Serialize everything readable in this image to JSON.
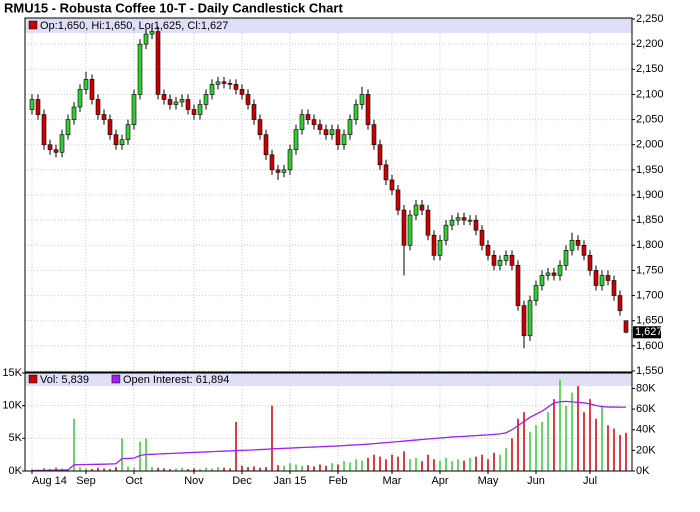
{
  "chart_data": [
    {
      "type": "candlestick",
      "title": "RMU15 - Robusta Coffee 10-T - Daily Candlestick Chart",
      "categories": [
        "Aug 14",
        null,
        null,
        null,
        null,
        null,
        null,
        null,
        null,
        "Sep",
        null,
        null,
        null,
        null,
        null,
        null,
        null,
        "Oct",
        null,
        null,
        null,
        null,
        null,
        null,
        null,
        null,
        null,
        "Nov",
        null,
        null,
        null,
        null,
        null,
        null,
        null,
        "Dec",
        null,
        null,
        null,
        null,
        null,
        null,
        null,
        "Jan 15",
        null,
        null,
        null,
        null,
        null,
        null,
        null,
        "Feb",
        null,
        null,
        null,
        null,
        null,
        null,
        null,
        null,
        "Mar",
        null,
        null,
        null,
        null,
        null,
        null,
        null,
        "Apr",
        null,
        null,
        null,
        null,
        null,
        null,
        null,
        "May",
        null,
        null,
        null,
        null,
        null,
        null,
        null,
        "Jun",
        null,
        null,
        null,
        null,
        null,
        null,
        null,
        null,
        "Jul",
        null,
        null,
        null,
        null,
        null,
        null
      ],
      "up_color": "#33cc33",
      "down_color": "#cc0000",
      "series": [
        {
          "name": "Op:1,650, Hi:1,650, Lo:1,625, Cl:1,627",
          "color": "#cc0000",
          "open": [
            2070,
            2090,
            2060,
            2000,
            1990,
            1985,
            2020,
            2050,
            2075,
            2110,
            2130,
            2090,
            2060,
            2050,
            2020,
            2000,
            2010,
            2040,
            2100,
            2200,
            2220,
            2225,
            2100,
            2090,
            2080,
            2085,
            2090,
            2070,
            2060,
            2080,
            2100,
            2120,
            2125,
            2122,
            2120,
            2110,
            2100,
            2080,
            2050,
            2020,
            1980,
            1950,
            1945,
            1950,
            1990,
            2030,
            2060,
            2050,
            2040,
            2030,
            2020,
            2030,
            2000,
            2020,
            2050,
            2080,
            2100,
            2040,
            2000,
            1960,
            1930,
            1910,
            1870,
            1800,
            1860,
            1880,
            1870,
            1820,
            1780,
            1810,
            1840,
            1850,
            1855,
            1850,
            1850,
            1830,
            1800,
            1780,
            1760,
            1770,
            1780,
            1760,
            1680,
            1620,
            1690,
            1720,
            1740,
            1745,
            1740,
            1760,
            1790,
            1810,
            1800,
            1780,
            1750,
            1720,
            1740,
            1730,
            1700,
            1650
          ],
          "high": [
            2100,
            2100,
            2070,
            2010,
            2000,
            2030,
            2060,
            2085,
            2120,
            2145,
            2140,
            2100,
            2070,
            2060,
            2030,
            2020,
            2050,
            2110,
            2210,
            2230,
            2240,
            2235,
            2110,
            2100,
            2095,
            2100,
            2100,
            2080,
            2090,
            2110,
            2130,
            2135,
            2135,
            2130,
            2130,
            2120,
            2110,
            2090,
            2060,
            2030,
            1990,
            1960,
            1960,
            2000,
            2040,
            2070,
            2070,
            2060,
            2050,
            2040,
            2040,
            2040,
            2030,
            2060,
            2090,
            2115,
            2110,
            2050,
            2010,
            1970,
            1940,
            1920,
            1880,
            1870,
            1890,
            1890,
            1880,
            1830,
            1820,
            1850,
            1860,
            1865,
            1865,
            1860,
            1860,
            1840,
            1810,
            1790,
            1780,
            1790,
            1790,
            1770,
            1690,
            1700,
            1730,
            1750,
            1755,
            1755,
            1770,
            1800,
            1825,
            1820,
            1810,
            1790,
            1760,
            1750,
            1750,
            1740,
            1710,
            1650
          ],
          "low": [
            2060,
            2050,
            1990,
            1980,
            1975,
            1975,
            2010,
            2040,
            2065,
            2100,
            2080,
            2050,
            2040,
            2010,
            1990,
            1990,
            2000,
            2030,
            2090,
            2190,
            2210,
            2090,
            2080,
            2070,
            2070,
            2075,
            2060,
            2050,
            2050,
            2070,
            2090,
            2110,
            2112,
            2110,
            2100,
            2090,
            2070,
            2040,
            2010,
            1970,
            1940,
            1930,
            1935,
            1940,
            1980,
            2020,
            2040,
            2030,
            2020,
            2010,
            2010,
            1990,
            1990,
            2010,
            2040,
            2070,
            2030,
            1990,
            1950,
            1920,
            1900,
            1860,
            1740,
            1790,
            1850,
            1860,
            1810,
            1770,
            1770,
            1800,
            1830,
            1840,
            1840,
            1840,
            1820,
            1790,
            1770,
            1750,
            1750,
            1760,
            1750,
            1670,
            1595,
            1610,
            1680,
            1710,
            1730,
            1730,
            1730,
            1750,
            1780,
            1790,
            1770,
            1740,
            1710,
            1710,
            1720,
            1690,
            1660,
            1625
          ],
          "close": [
            2090,
            2060,
            2000,
            1990,
            1985,
            2020,
            2050,
            2075,
            2110,
            2130,
            2090,
            2060,
            2050,
            2020,
            2000,
            2010,
            2040,
            2100,
            2200,
            2220,
            2225,
            2100,
            2090,
            2080,
            2085,
            2090,
            2070,
            2060,
            2080,
            2100,
            2120,
            2125,
            2122,
            2120,
            2110,
            2100,
            2080,
            2050,
            2020,
            1980,
            1950,
            1945,
            1950,
            1990,
            2030,
            2060,
            2050,
            2040,
            2030,
            2020,
            2030,
            2000,
            2020,
            2050,
            2080,
            2100,
            2040,
            2000,
            1960,
            1930,
            1910,
            1870,
            1800,
            1860,
            1880,
            1870,
            1820,
            1780,
            1810,
            1840,
            1850,
            1855,
            1850,
            1850,
            1830,
            1800,
            1780,
            1760,
            1770,
            1780,
            1760,
            1680,
            1620,
            1690,
            1720,
            1740,
            1745,
            1740,
            1760,
            1790,
            1810,
            1800,
            1780,
            1750,
            1720,
            1740,
            1730,
            1700,
            1670,
            1627
          ]
        }
      ],
      "last_label": "1,627",
      "ylim": [
        1550,
        2250
      ],
      "yticks": [
        {
          "value": 1550,
          "label": "1,550"
        },
        {
          "value": 1600,
          "label": "1,600"
        },
        {
          "value": 1650,
          "label": "1,650"
        },
        {
          "value": 1700,
          "label": "1,700"
        },
        {
          "value": 1750,
          "label": "1,750"
        },
        {
          "value": 1800,
          "label": "1,800"
        },
        {
          "value": 1850,
          "label": "1,850"
        },
        {
          "value": 1900,
          "label": "1,900"
        },
        {
          "value": 1950,
          "label": "1,950"
        },
        {
          "value": 2000,
          "label": "2,000"
        },
        {
          "value": 2050,
          "label": "2,050"
        },
        {
          "value": 2100,
          "label": "2,100"
        },
        {
          "value": 2150,
          "label": "2,150"
        },
        {
          "value": 2200,
          "label": "2,200"
        },
        {
          "value": 2250,
          "label": "2,250"
        }
      ],
      "grid": true
    },
    {
      "type": "volume",
      "series": [
        {
          "name": "Vol: 5,839",
          "type": "bar",
          "color": "#cc0000",
          "values": [
            300,
            200,
            400,
            300,
            500,
            400,
            300,
            8000,
            600,
            400,
            300,
            500,
            400,
            300,
            600,
            5000,
            700,
            500,
            4500,
            5000,
            600,
            500,
            400,
            300,
            400,
            500,
            300,
            400,
            300,
            500,
            400,
            600,
            500,
            400,
            7500,
            800,
            600,
            700,
            500,
            600,
            10000,
            900,
            800,
            1200,
            1000,
            800,
            900,
            700,
            1000,
            800,
            1200,
            1000,
            1500,
            1300,
            1800,
            1600,
            2000,
            2500,
            2200,
            1800,
            2500,
            2200,
            3000,
            1800,
            2000,
            1500,
            2500,
            1800,
            1600,
            2000,
            1500,
            1800,
            1600,
            2000,
            2200,
            2500,
            1800,
            2800,
            2500,
            3500,
            5000,
            8000,
            9000,
            6000,
            7000,
            7500,
            9000,
            11000,
            14000,
            10000,
            12000,
            13000,
            9000,
            11000,
            8000,
            10000,
            7000,
            6500,
            5500,
            5839
          ]
        },
        {
          "name": "Open Interest: 61,894",
          "type": "line",
          "axis": "y2",
          "color": "#a020f0",
          "values": [
            500,
            500,
            600,
            700,
            800,
            900,
            1000,
            6000,
            6200,
            6300,
            6400,
            6500,
            6600,
            6800,
            7000,
            12000,
            12200,
            12500,
            15000,
            16000,
            16200,
            16500,
            16800,
            17000,
            17200,
            17500,
            17800,
            18000,
            18300,
            18500,
            18800,
            19000,
            19200,
            19500,
            19800,
            20000,
            20200,
            20500,
            20800,
            21000,
            21500,
            21700,
            22000,
            22200,
            22500,
            22800,
            23000,
            23200,
            23500,
            23800,
            24000,
            24300,
            24600,
            25000,
            25300,
            25700,
            26000,
            26500,
            27000,
            27500,
            28000,
            28500,
            29000,
            29500,
            30000,
            30500,
            31000,
            31500,
            32000,
            32500,
            33000,
            33300,
            33600,
            34000,
            34300,
            34700,
            35000,
            35500,
            36000,
            37000,
            40000,
            44000,
            48000,
            52000,
            55000,
            58000,
            62000,
            66000,
            67000,
            67500,
            67000,
            66500,
            66000,
            65000,
            63500,
            62500,
            62000,
            62000,
            61800,
            61894
          ]
        }
      ],
      "ylim": [
        0,
        15000
      ],
      "yticks": [
        {
          "value": 0,
          "label": "0K"
        },
        {
          "value": 5000,
          "label": "5K"
        },
        {
          "value": 10000,
          "label": "10K"
        },
        {
          "value": 15000,
          "label": "15K"
        }
      ],
      "y2lim": [
        0,
        95000
      ],
      "y2ticks": [
        {
          "value": 0,
          "label": "0K"
        },
        {
          "value": 20000,
          "label": "20K"
        },
        {
          "value": 40000,
          "label": "40K"
        },
        {
          "value": 60000,
          "label": "60K"
        },
        {
          "value": 80000,
          "label": "80K"
        }
      ],
      "grid": true
    }
  ]
}
